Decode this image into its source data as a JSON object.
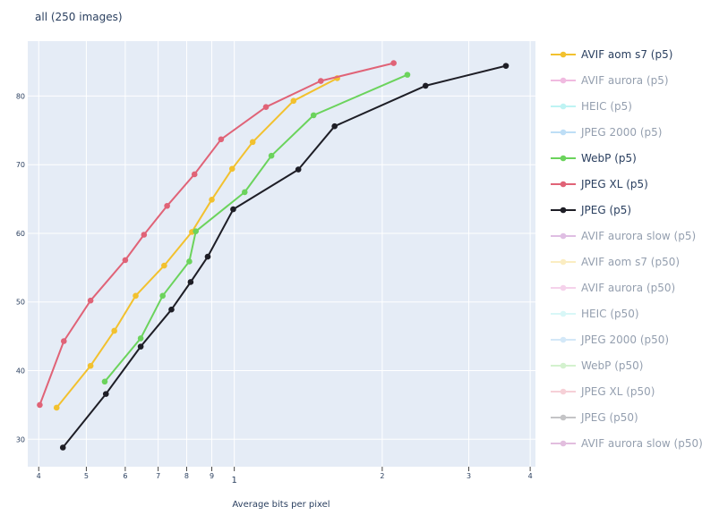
{
  "chart_data": {
    "type": "line",
    "title": "all (250 images)",
    "xlabel": "Average bits per pixel",
    "ylabel": "",
    "x_scale": "log",
    "xlim": [
      0.38,
      4.1
    ],
    "ylim": [
      26,
      88
    ],
    "grid": true,
    "legend_position": "right",
    "x_ticks": [
      {
        "value": 0.4,
        "label": "4"
      },
      {
        "value": 0.5,
        "label": "5"
      },
      {
        "value": 0.6,
        "label": "6"
      },
      {
        "value": 0.7,
        "label": "7"
      },
      {
        "value": 0.8,
        "label": "8"
      },
      {
        "value": 0.9,
        "label": "9"
      },
      {
        "value": 1,
        "label": "1"
      },
      {
        "value": 2,
        "label": "2"
      },
      {
        "value": 3,
        "label": "3"
      },
      {
        "value": 4,
        "label": "4"
      }
    ],
    "y_ticks": [
      30,
      40,
      50,
      60,
      70,
      80
    ],
    "series": [
      {
        "name": "AVIF aom s7 (p5)",
        "color": "#f2c12e",
        "visible": true,
        "points": [
          [
            0.435,
            34.6
          ],
          [
            0.51,
            40.7
          ],
          [
            0.57,
            45.8
          ],
          [
            0.63,
            50.9
          ],
          [
            0.72,
            55.3
          ],
          [
            0.82,
            60.2
          ],
          [
            0.9,
            64.9
          ],
          [
            0.99,
            69.4
          ],
          [
            1.09,
            73.3
          ],
          [
            1.32,
            79.3
          ],
          [
            1.62,
            82.6
          ]
        ]
      },
      {
        "name": "AVIF aurora (p5)",
        "color": "#e377c2",
        "visible": false,
        "points": []
      },
      {
        "name": "HEIC (p5)",
        "color": "#7fe8e8",
        "visible": false,
        "points": []
      },
      {
        "name": "JPEG 2000 (p5)",
        "color": "#7fbfef",
        "visible": false,
        "points": []
      },
      {
        "name": "WebP (p5)",
        "color": "#6bd35c",
        "visible": true,
        "points": [
          [
            0.545,
            38.4
          ],
          [
            0.645,
            44.7
          ],
          [
            0.715,
            50.9
          ],
          [
            0.81,
            55.9
          ],
          [
            0.835,
            60.3
          ],
          [
            1.05,
            66.0
          ],
          [
            1.19,
            71.3
          ],
          [
            1.45,
            77.2
          ],
          [
            2.25,
            83.1
          ]
        ]
      },
      {
        "name": "JPEG XL (p5)",
        "color": "#e06377",
        "visible": true,
        "points": [
          [
            0.402,
            35.0
          ],
          [
            0.45,
            44.3
          ],
          [
            0.51,
            50.2
          ],
          [
            0.6,
            56.1
          ],
          [
            0.655,
            59.8
          ],
          [
            0.73,
            64.0
          ],
          [
            0.83,
            68.6
          ],
          [
            0.94,
            73.7
          ],
          [
            1.16,
            78.4
          ],
          [
            1.5,
            82.2
          ],
          [
            2.11,
            84.8
          ]
        ]
      },
      {
        "name": "JPEG (p5)",
        "color": "#1e1e26",
        "visible": true,
        "points": [
          [
            0.448,
            28.8
          ],
          [
            0.548,
            36.6
          ],
          [
            0.645,
            43.5
          ],
          [
            0.745,
            48.9
          ],
          [
            0.815,
            52.9
          ],
          [
            0.883,
            56.6
          ],
          [
            0.995,
            63.5
          ],
          [
            1.35,
            69.3
          ],
          [
            1.6,
            75.6
          ],
          [
            2.45,
            81.5
          ],
          [
            3.57,
            84.4
          ]
        ]
      },
      {
        "name": "AVIF aurora slow (p5)",
        "color": "#c07fc8",
        "visible": false,
        "points": []
      },
      {
        "name": "AVIF aom s7 (p50)",
        "color": "#f8dd86",
        "visible": false,
        "points": []
      },
      {
        "name": "AVIF aurora (p50)",
        "color": "#eca6d9",
        "visible": false,
        "points": []
      },
      {
        "name": "HEIC (p50)",
        "color": "#b2f0f0",
        "visible": false,
        "points": []
      },
      {
        "name": "JPEG 2000 (p50)",
        "color": "#a8d3f3",
        "visible": false,
        "points": []
      },
      {
        "name": "WebP (p50)",
        "color": "#a8e49f",
        "visible": false,
        "points": []
      },
      {
        "name": "JPEG XL (p50)",
        "color": "#efa3b0",
        "visible": false,
        "points": []
      },
      {
        "name": "JPEG (p50)",
        "color": "#8a8a8f",
        "visible": false,
        "points": []
      },
      {
        "name": "AVIF aurora slow (p50)",
        "color": "#c67fbf",
        "visible": false,
        "points": []
      }
    ]
  },
  "colors": {
    "plot_bg": "#e5ecf6",
    "grid": "#ffffff",
    "text": "#2a3f5f",
    "legend_hidden_text": "#97a3b3"
  }
}
